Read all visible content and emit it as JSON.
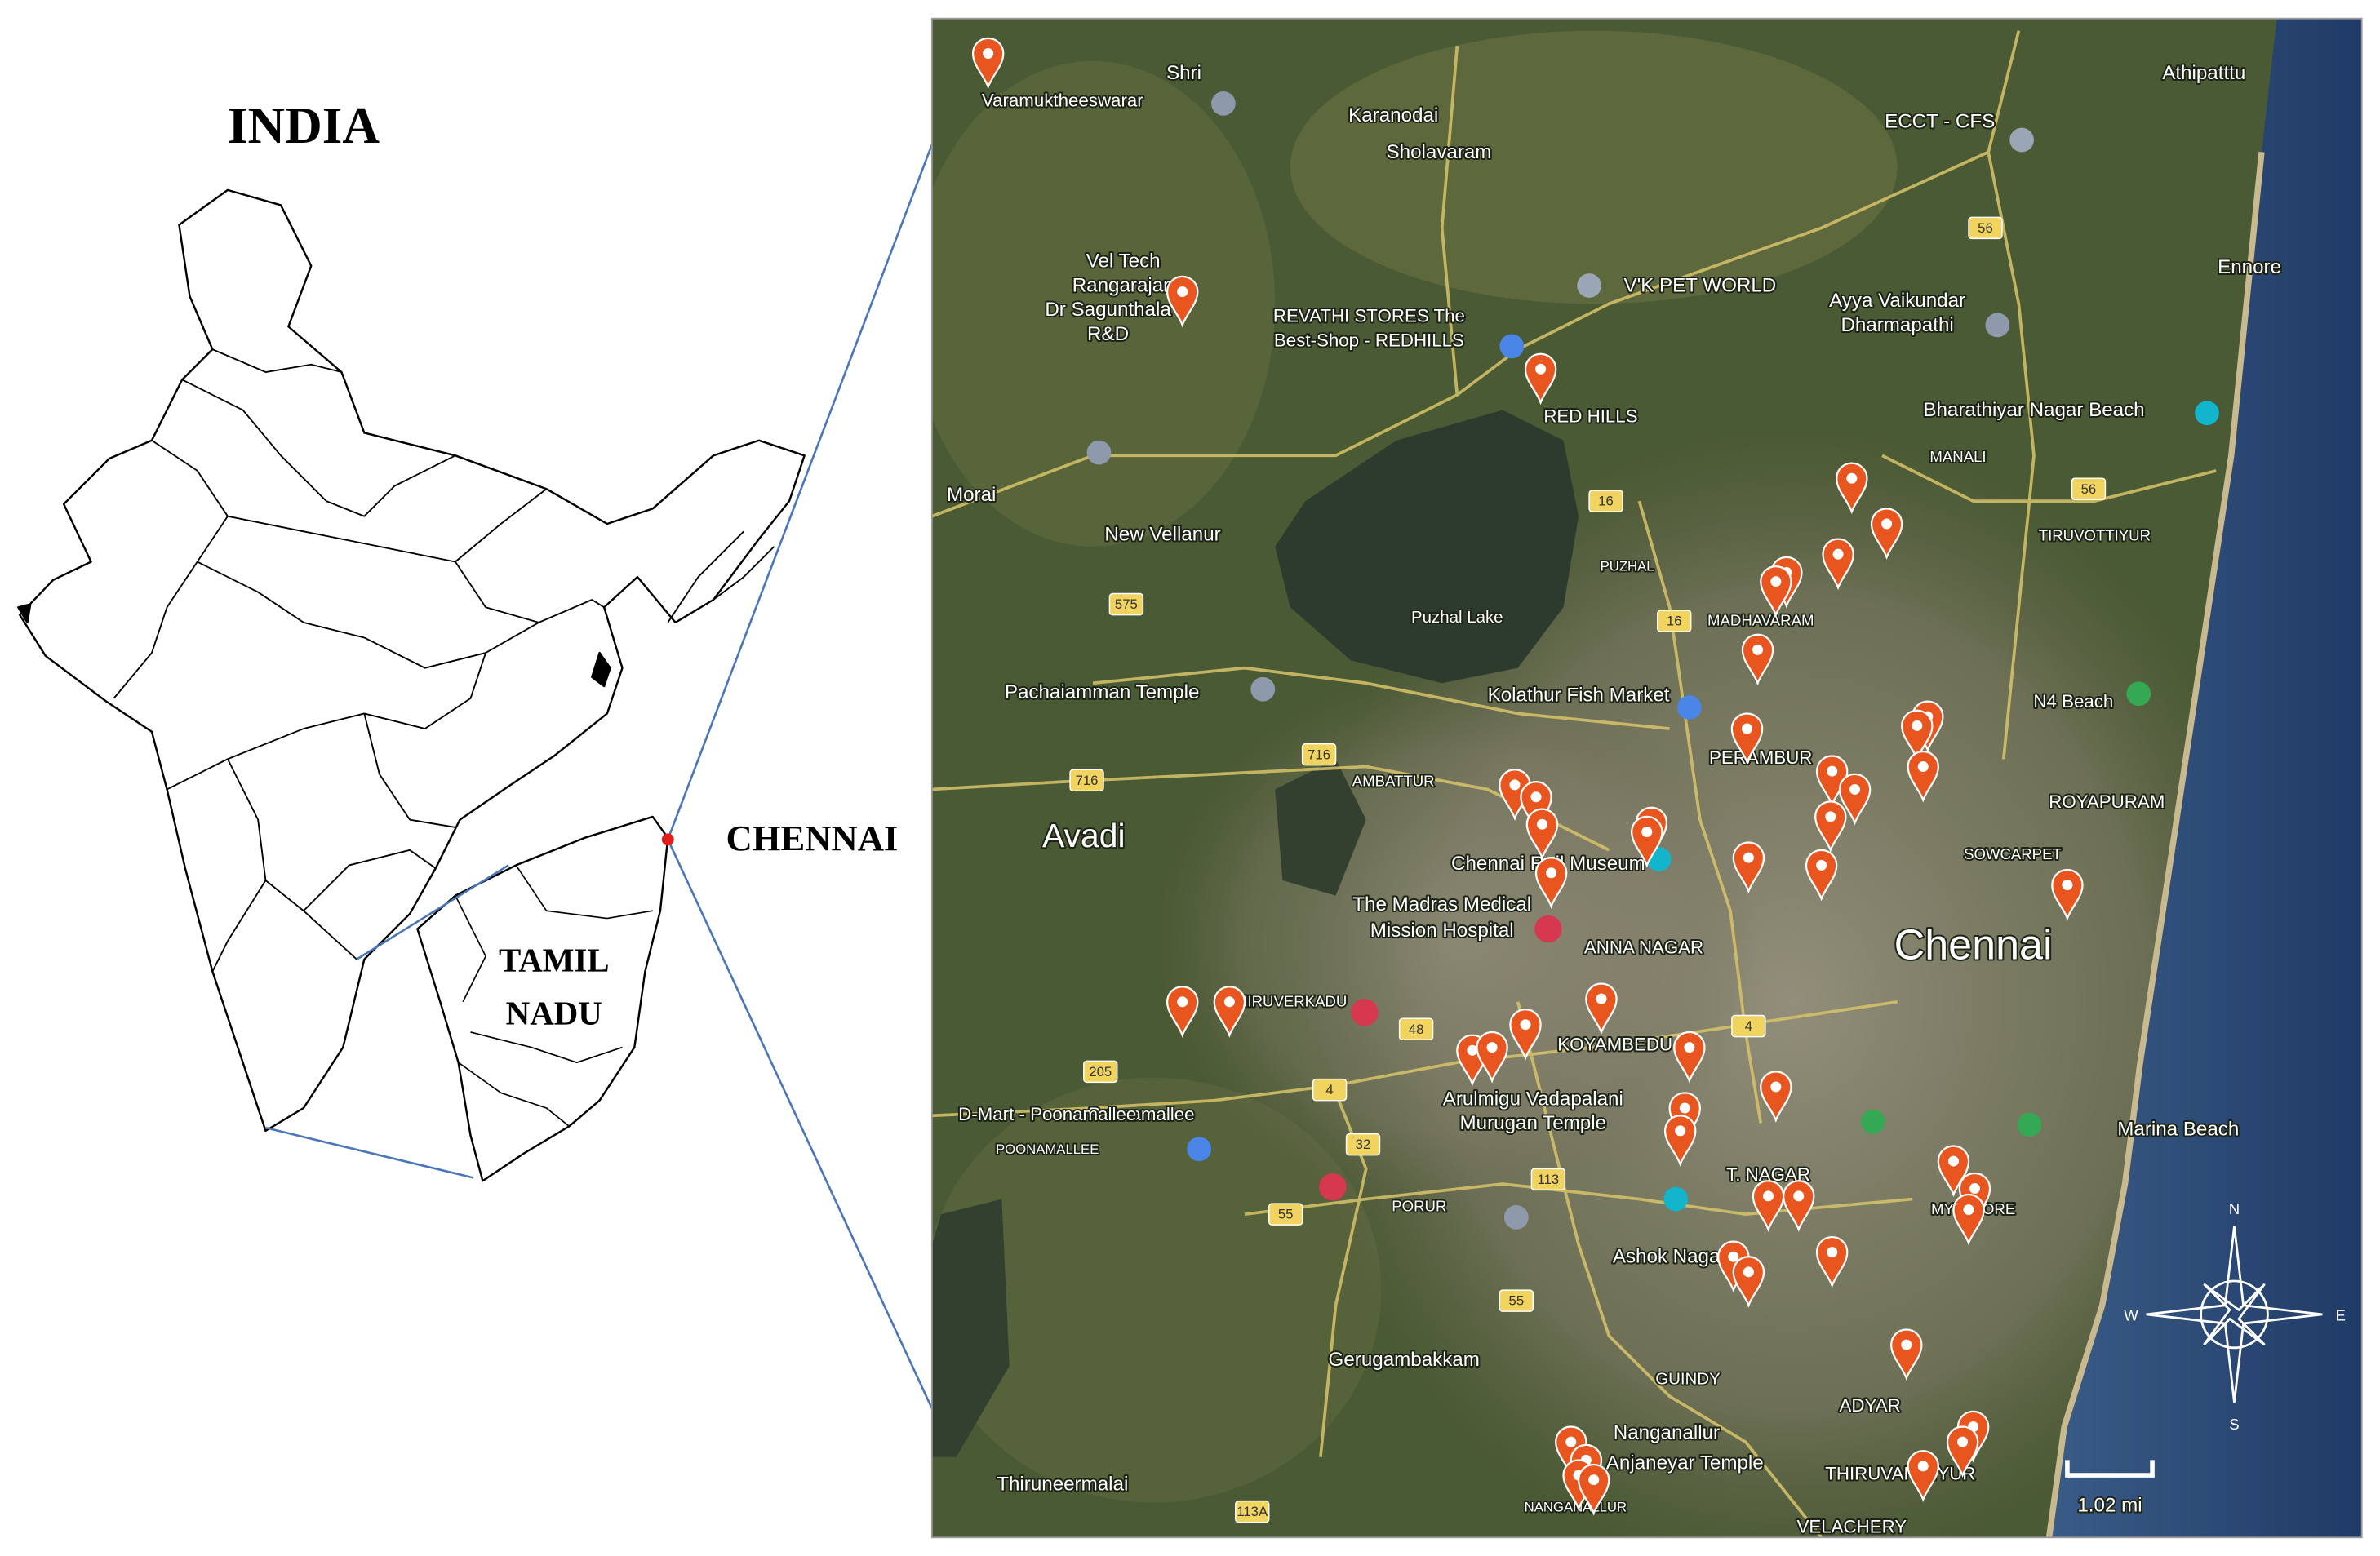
{
  "left_panel": {
    "title": "INDIA",
    "city": "CHENNAI",
    "state": [
      "TAMIL",
      "NADU"
    ]
  },
  "map": {
    "labels": [
      "Chennai",
      "Avadi",
      "RED HILLS",
      "ANNA NAGAR",
      "Puzhal Lake",
      "Marina Beach",
      "ADYAR",
      "GUINDY",
      "T. NAGAR",
      "ROYAPURAM",
      "Ennore",
      "N4 Beach",
      "Karanodai",
      "Sholavaram",
      "Athipatttu",
      "KOYAMBEDU",
      "PERAMBUR",
      "MADHAVARAM",
      "THIRUVANMIYUR",
      "Poonamallee",
      "Pachaiamman Temple",
      "Kolathur Fish Market",
      "Chennai Rail Museum",
      "The Madras Medical",
      "Mission Hospital",
      "Gerugambakkam",
      "Nanganallur",
      "Anjaneyar Temple",
      "Thiruneermalai",
      "New Vellanur",
      "Morai",
      "Vel Tech",
      "Rangarajan",
      "Dr Sagunthala",
      "R&D",
      "REVATHI STORES The",
      "Best-Shop - REDHILLS",
      "V'K PET WORLD",
      "Ayya Vaikundar",
      "Dharmapathi",
      "Bharathiyar Nagar Beach",
      "ECCT - CFS",
      "Arulmigu Vadapalani",
      "Murugan Temple",
      "Ashok Nagar",
      "MANALI",
      "TIRUVOTTIYUR",
      "PORUR",
      "AMBATTUR",
      "PUZHAL",
      "SOWCARPET",
      "Shri",
      "Varamuktheeswarar",
      "D-Mart - Poonamallee",
      "POONAMALLEE",
      "THIRUVERKADU",
      "NANGANALLUR",
      "VELACHERY",
      "MYLAPORE"
    ],
    "routes": [
      "16",
      "16",
      "4",
      "4",
      "48",
      "32",
      "55",
      "55",
      "113",
      "113A",
      "716",
      "716",
      "575",
      "56",
      "56",
      "205"
    ],
    "scale": "1.02 mi",
    "compass": [
      "N",
      "S",
      "E",
      "W"
    ]
  }
}
